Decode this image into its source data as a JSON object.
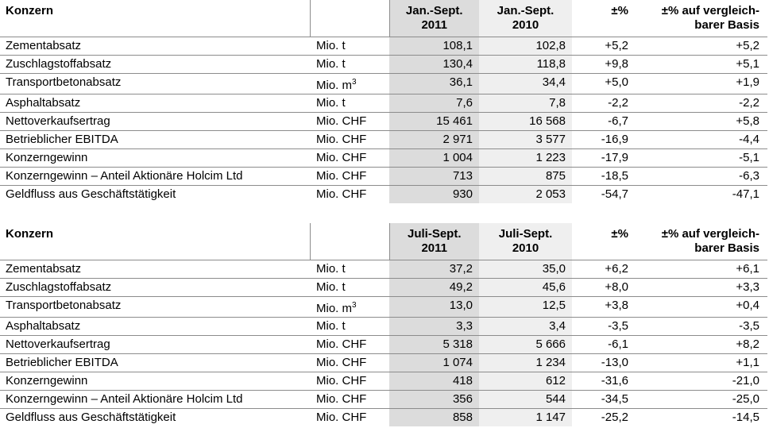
{
  "tables": [
    {
      "title": "Konzern",
      "col_current": [
        "Jan.-Sept.",
        "2011"
      ],
      "col_prior": [
        "Jan.-Sept.",
        "2010"
      ],
      "col_change": "±%",
      "col_comparable": [
        "±% auf vergleich-",
        "barer Basis"
      ],
      "rows": [
        {
          "label": "Zementabsatz",
          "unit": "Mio. t",
          "current": "108,1",
          "prior": "102,8",
          "change": "+5,2",
          "comparable": "+5,2"
        },
        {
          "label": "Zuschlagstoffabsatz",
          "unit": "Mio. t",
          "current": "130,4",
          "prior": "118,8",
          "change": "+9,8",
          "comparable": "+5,1"
        },
        {
          "label": "Transportbetonabsatz",
          "unit": "Mio. m",
          "unit_sup": "3",
          "current": "36,1",
          "prior": "34,4",
          "change": "+5,0",
          "comparable": "+1,9"
        },
        {
          "label": "Asphaltabsatz",
          "unit": "Mio. t",
          "current": "7,6",
          "prior": "7,8",
          "change": "-2,2",
          "comparable": "-2,2"
        },
        {
          "label": "Nettoverkaufsertrag",
          "unit": "Mio. CHF",
          "current": "15 461",
          "prior": "16 568",
          "change": "-6,7",
          "comparable": "+5,8"
        },
        {
          "label": "Betrieblicher EBITDA",
          "unit": "Mio. CHF",
          "current": "2 971",
          "prior": "3 577",
          "change": "-16,9",
          "comparable": "-4,4"
        },
        {
          "label": "Konzerngewinn",
          "unit": "Mio. CHF",
          "current": "1 004",
          "prior": "1 223",
          "change": "-17,9",
          "comparable": "-5,1"
        },
        {
          "label": "Konzerngewinn – Anteil Aktionäre Holcim Ltd",
          "unit": "Mio. CHF",
          "current": "713",
          "prior": "875",
          "change": "-18,5",
          "comparable": "-6,3"
        },
        {
          "label": "Geldfluss aus Geschäftstätigkeit",
          "unit": "Mio. CHF",
          "current": "930",
          "prior": "2 053",
          "change": "-54,7",
          "comparable": "-47,1"
        }
      ]
    },
    {
      "title": "Konzern",
      "col_current": [
        "Juli-Sept.",
        "2011"
      ],
      "col_prior": [
        "Juli-Sept.",
        "2010"
      ],
      "col_change": "±%",
      "col_comparable": [
        "±% auf vergleich-",
        "barer Basis"
      ],
      "rows": [
        {
          "label": "Zementabsatz",
          "unit": "Mio. t",
          "current": "37,2",
          "prior": "35,0",
          "change": "+6,2",
          "comparable": "+6,1"
        },
        {
          "label": "Zuschlagstoffabsatz",
          "unit": "Mio. t",
          "current": "49,2",
          "prior": "45,6",
          "change": "+8,0",
          "comparable": "+3,3"
        },
        {
          "label": "Transportbetonabsatz",
          "unit": "Mio. m",
          "unit_sup": "3",
          "current": "13,0",
          "prior": "12,5",
          "change": "+3,8",
          "comparable": "+0,4"
        },
        {
          "label": "Asphaltabsatz",
          "unit": "Mio. t",
          "current": "3,3",
          "prior": "3,4",
          "change": "-3,5",
          "comparable": "-3,5"
        },
        {
          "label": "Nettoverkaufsertrag",
          "unit": "Mio. CHF",
          "current": "5 318",
          "prior": "5 666",
          "change": "-6,1",
          "comparable": "+8,2"
        },
        {
          "label": "Betrieblicher EBITDA",
          "unit": "Mio. CHF",
          "current": "1 074",
          "prior": "1 234",
          "change": "-13,0",
          "comparable": "+1,1"
        },
        {
          "label": "Konzerngewinn",
          "unit": "Mio. CHF",
          "current": "418",
          "prior": "612",
          "change": "-31,6",
          "comparable": "-21,0"
        },
        {
          "label": "Konzerngewinn – Anteil Aktionäre Holcim Ltd",
          "unit": "Mio. CHF",
          "current": "356",
          "prior": "544",
          "change": "-34,5",
          "comparable": "-25,0"
        },
        {
          "label": "Geldfluss aus Geschäftstätigkeit",
          "unit": "Mio. CHF",
          "current": "858",
          "prior": "1 147",
          "change": "-25,2",
          "comparable": "-14,5"
        }
      ]
    }
  ]
}
